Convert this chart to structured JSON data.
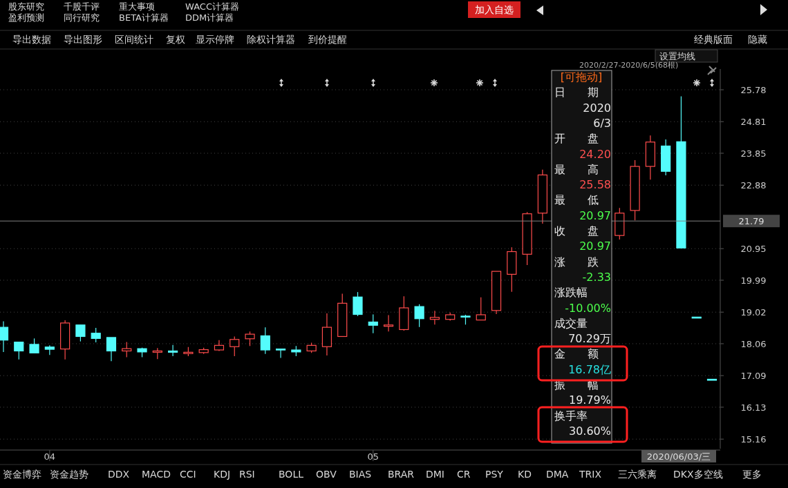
{
  "chart_data": {
    "type": "candlestick",
    "categories": [
      null,
      null,
      null,
      "04",
      null,
      null,
      null,
      null,
      null,
      null,
      null,
      null,
      null,
      null,
      null,
      null,
      null,
      null,
      null,
      null,
      null,
      null,
      null,
      null,
      "05",
      null,
      null,
      null,
      null,
      null,
      null,
      null,
      null,
      null,
      null,
      null,
      null,
      null,
      null,
      null,
      null,
      null,
      null,
      null,
      null,
      null,
      null
    ],
    "ohlc": [
      [
        18.56,
        18.74,
        17.81,
        18.17
      ],
      [
        18.11,
        18.11,
        17.58,
        17.84
      ],
      [
        18.04,
        18.22,
        17.78,
        17.78
      ],
      [
        17.96,
        18.01,
        17.72,
        17.89
      ],
      [
        17.9,
        18.77,
        17.58,
        18.69
      ],
      [
        18.63,
        18.63,
        18.13,
        18.28
      ],
      [
        18.38,
        18.54,
        18.1,
        18.22
      ],
      [
        18.25,
        18.25,
        17.53,
        17.84
      ],
      [
        17.84,
        18.11,
        17.65,
        17.91
      ],
      [
        17.91,
        17.94,
        17.65,
        17.81
      ],
      [
        17.8,
        17.93,
        17.59,
        17.84
      ],
      [
        17.84,
        18.02,
        17.68,
        17.8
      ],
      [
        17.76,
        17.96,
        17.68,
        17.8
      ],
      [
        17.79,
        17.94,
        17.75,
        17.88
      ],
      [
        17.87,
        18.17,
        17.84,
        18.01
      ],
      [
        17.97,
        18.28,
        17.68,
        18.19
      ],
      [
        18.21,
        18.43,
        17.99,
        18.35
      ],
      [
        18.3,
        18.56,
        17.75,
        17.87
      ],
      [
        17.9,
        17.9,
        17.63,
        17.87
      ],
      [
        17.87,
        17.99,
        17.68,
        17.81
      ],
      [
        17.84,
        18.09,
        17.78,
        18.01
      ],
      [
        17.97,
        18.98,
        17.7,
        18.56
      ],
      [
        18.28,
        19.58,
        18.28,
        19.29
      ],
      [
        19.48,
        19.63,
        18.9,
        18.95
      ],
      [
        18.72,
        18.95,
        18.38,
        18.62
      ],
      [
        18.59,
        18.93,
        18.43,
        18.63
      ],
      [
        18.49,
        19.5,
        18.46,
        19.15
      ],
      [
        19.19,
        19.26,
        18.57,
        18.82
      ],
      [
        18.8,
        19.06,
        18.64,
        18.86
      ],
      [
        18.8,
        19.01,
        18.76,
        18.94
      ],
      [
        18.9,
        18.94,
        18.64,
        18.88
      ],
      [
        18.78,
        19.47,
        18.78,
        18.94
      ],
      [
        19.07,
        20.26,
        18.96,
        20.26
      ],
      [
        20.17,
        20.99,
        19.64,
        20.86
      ],
      [
        20.78,
        22.06,
        20.45,
        22.01
      ],
      [
        22.03,
        23.35,
        21.71,
        23.19
      ],
      null,
      null,
      null,
      null,
      [
        21.35,
        22.19,
        21.23,
        22.03
      ],
      [
        22.11,
        23.64,
        21.81,
        23.45
      ],
      [
        23.45,
        24.39,
        23.05,
        24.19
      ],
      [
        24.07,
        24.27,
        23.18,
        23.3
      ],
      [
        24.2,
        25.58,
        20.97,
        20.97
      ],
      [
        18.87,
        18.87,
        18.87,
        18.87
      ],
      [
        16.98,
        16.98,
        16.98,
        16.98
      ]
    ],
    "colors": [
      "#54fcfc",
      "#54fcfc",
      "#54fcfc",
      "#54fcfc",
      "#ff4c4c",
      "#54fcfc",
      "#54fcfc",
      "#54fcfc",
      "#ff4c4c",
      "#54fcfc",
      "#ff4c4c",
      "#54fcfc",
      "#ff4c4c",
      "#ff4c4c",
      "#ff4c4c",
      "#ff4c4c",
      "#ff4c4c",
      "#54fcfc",
      "#54fcfc",
      "#54fcfc",
      "#ff4c4c",
      "#ff4c4c",
      "#ff4c4c",
      "#54fcfc",
      "#54fcfc",
      "#ff4c4c",
      "#ff4c4c",
      "#54fcfc",
      "#ff4c4c",
      "#ff4c4c",
      "#54fcfc",
      "#ff4c4c",
      "#ff4c4c",
      "#ff4c4c",
      "#ff4c4c",
      "#ff4c4c",
      null,
      null,
      null,
      null,
      "#ff4c4c",
      "#ff4c4c",
      "#ff4c4c",
      "#54fcfc",
      "#54fcfc",
      "#54fcfc",
      "#54fcfc"
    ],
    "ylim": [
      14.87,
      26.41
    ],
    "yticks": [
      15.16,
      16.13,
      17.09,
      18.06,
      19.02,
      19.99,
      20.95,
      22.88,
      23.85,
      24.81,
      25.78
    ],
    "grid": "y",
    "ref_lines": [
      {
        "axis": "y",
        "value": 21.79,
        "label": "21.79",
        "color": "#808080"
      }
    ],
    "annotations": [
      "股东研究",
      "千股千评",
      "重大事项",
      "WACC计算器",
      "盈利预测",
      "同行研究",
      "BETA计算器",
      "DDM计算器",
      "加入自选",
      "导出数据",
      "导出图形",
      "区间统计",
      "复权",
      "显示停牌",
      "除权计算器",
      "到价提醒",
      "经典版面",
      "隐藏",
      "设置均线",
      "2020/2/27-2020/6/5(68根)",
      "[可拖动]",
      "日　　期",
      "2020",
      "6/3",
      "开　　盘",
      "24.20",
      "最　　高",
      "25.58",
      "最　　低",
      "20.97",
      "收　　盘",
      "20.97",
      "涨　　跌",
      "-2.33",
      "涨跌幅",
      "-10.00%",
      "成交量",
      "70.29万",
      "金　　额",
      "16.78亿",
      "振　　幅",
      "19.79%",
      "换手率",
      "30.60%",
      "2020/06/03/三",
      "资金博弈",
      "资金趋势",
      "DDX",
      "MACD",
      "CCI",
      "KDJ",
      "RSI",
      "BOLL",
      "OBV",
      "BIAS",
      "BRAR",
      "DMI",
      "CR",
      "PSY",
      "KD",
      "DMA",
      "TRIX",
      "三六乘离",
      "DKX多空线",
      "更多"
    ]
  }
}
